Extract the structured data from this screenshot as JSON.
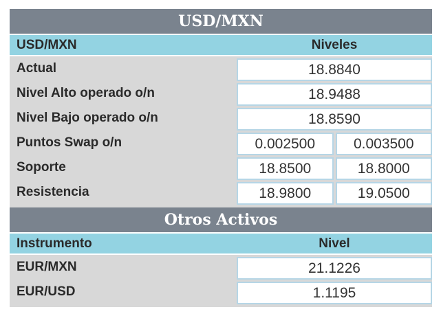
{
  "usd_mxn": {
    "title": "USD/MXN",
    "col_label": "USD/MXN",
    "col_value": "Niveles",
    "rows": [
      {
        "label": "Actual",
        "values": [
          "18.8840"
        ]
      },
      {
        "label": "Nivel Alto operado o/n",
        "values": [
          "18.9488"
        ]
      },
      {
        "label": "Nivel Bajo operado o/n",
        "values": [
          "18.8590"
        ]
      },
      {
        "label": "Puntos Swap o/n",
        "values": [
          "0.002500",
          "0.003500"
        ]
      },
      {
        "label": "Soporte",
        "values": [
          "18.8500",
          "18.8000"
        ]
      },
      {
        "label": "Resistencia",
        "values": [
          "18.9800",
          "19.0500"
        ]
      }
    ]
  },
  "otros": {
    "title": "Otros Activos",
    "col_label": "Instrumento",
    "col_value": "Nivel",
    "rows": [
      {
        "label": "EUR/MXN",
        "values": [
          "21.1226"
        ]
      },
      {
        "label": "EUR/USD",
        "values": [
          "1.1195"
        ]
      }
    ]
  },
  "colors": {
    "title_bg": "#7a838e",
    "header_bg": "#93d3e2",
    "label_bg": "#d8d8d8",
    "cell_border": "#b6d6e6"
  }
}
